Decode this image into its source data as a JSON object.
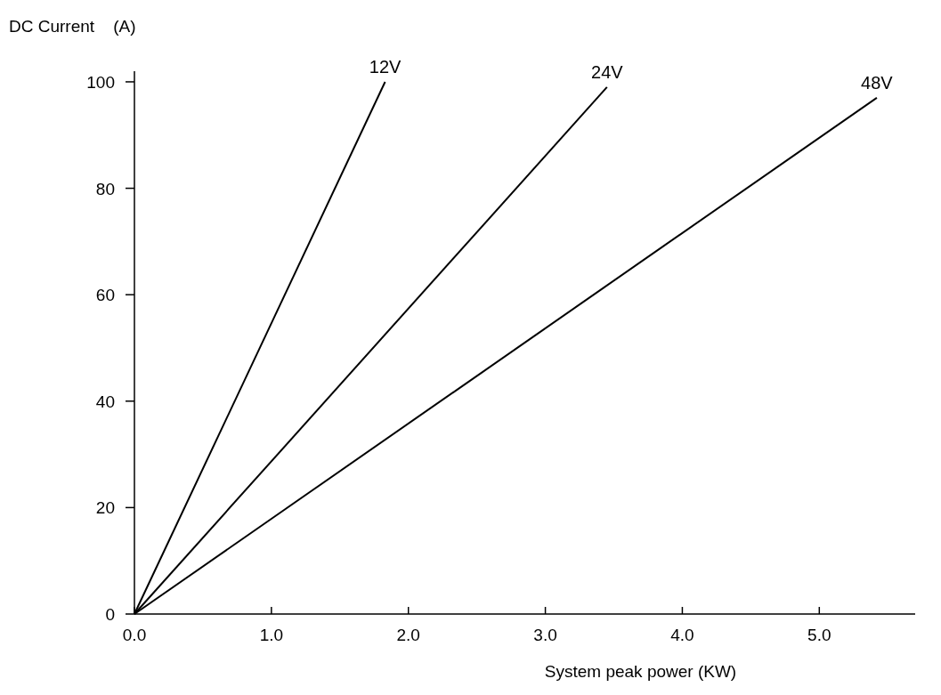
{
  "chart_data": {
    "type": "line",
    "xlabel": "System peak power (KW)",
    "ylabel": "DC Current    (A)",
    "xlim": [
      0,
      5.7
    ],
    "ylim": [
      0,
      102
    ],
    "xticks": [
      {
        "value": 0,
        "label": "0.0"
      },
      {
        "value": 1,
        "label": "1.0"
      },
      {
        "value": 2,
        "label": "2.0"
      },
      {
        "value": 3,
        "label": "3.0"
      },
      {
        "value": 4,
        "label": "4.0"
      },
      {
        "value": 5,
        "label": "5.0"
      }
    ],
    "yticks": [
      0,
      20,
      40,
      60,
      80,
      100
    ],
    "grid": false,
    "legend": false,
    "marker": "none",
    "line_style": "solid",
    "series": [
      {
        "name": "12V",
        "color": "#000000",
        "x": [
          0,
          1.83
        ],
        "values": [
          0,
          100
        ]
      },
      {
        "name": "24V",
        "color": "#000000",
        "x": [
          0,
          3.45
        ],
        "values": [
          0,
          99
        ]
      },
      {
        "name": "48V",
        "color": "#000000",
        "x": [
          0,
          5.42
        ],
        "values": [
          0,
          97
        ]
      }
    ]
  }
}
